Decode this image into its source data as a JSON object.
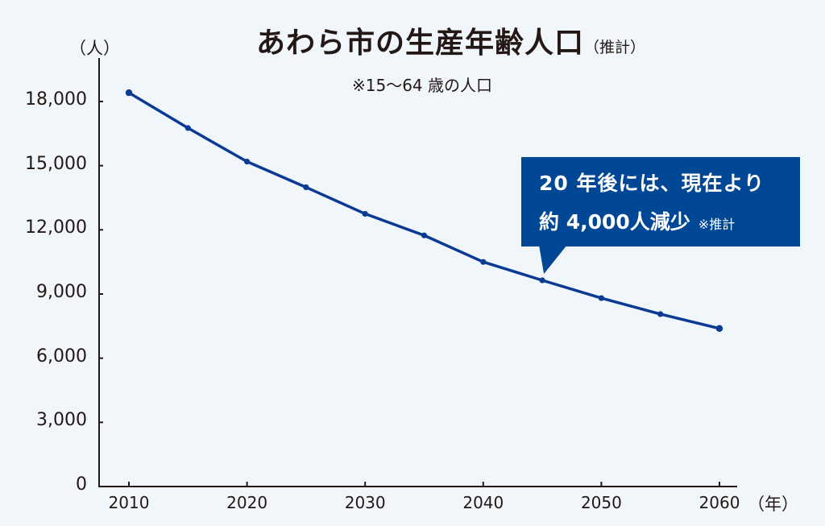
{
  "colors": {
    "background": "#f1f6fb",
    "line": "#0a3a94",
    "callout": "#004896",
    "text": "#231815"
  },
  "chart_data": {
    "type": "line",
    "title": "あわら市の生産年齢人口",
    "title_note": "（推計）",
    "subtitle": "※15〜64 歳の人口",
    "ylabel": "（人）",
    "xlabel": "（年）",
    "ylim": [
      0,
      19500
    ],
    "xlim": [
      2007.5,
      2063.5
    ],
    "y_ticks": [
      0,
      3000,
      6000,
      9000,
      12000,
      15000,
      18000
    ],
    "y_tick_labels": [
      "0",
      "3,000",
      "6,000",
      "9,000",
      "12,000",
      "15,000",
      "18,000"
    ],
    "x_ticks": [
      2010,
      2020,
      2030,
      2040,
      2050,
      2060
    ],
    "x_tick_labels": [
      "2010",
      "2020",
      "2030",
      "2040",
      "2050",
      "2060"
    ],
    "grid": false,
    "series": [
      {
        "name": "生産年齢人口",
        "x": [
          2010,
          2015,
          2020,
          2025,
          2030,
          2035,
          2040,
          2045,
          2050,
          2055,
          2060
        ],
        "values": [
          18410,
          16760,
          15190,
          13990,
          12750,
          11740,
          10500,
          9640,
          8810,
          8060,
          7390
        ]
      }
    ],
    "annotation": {
      "line1": "20 年後には、現在より",
      "line2": "約 4,000人減少",
      "note": "※推計",
      "points_to_x": 2045
    }
  }
}
